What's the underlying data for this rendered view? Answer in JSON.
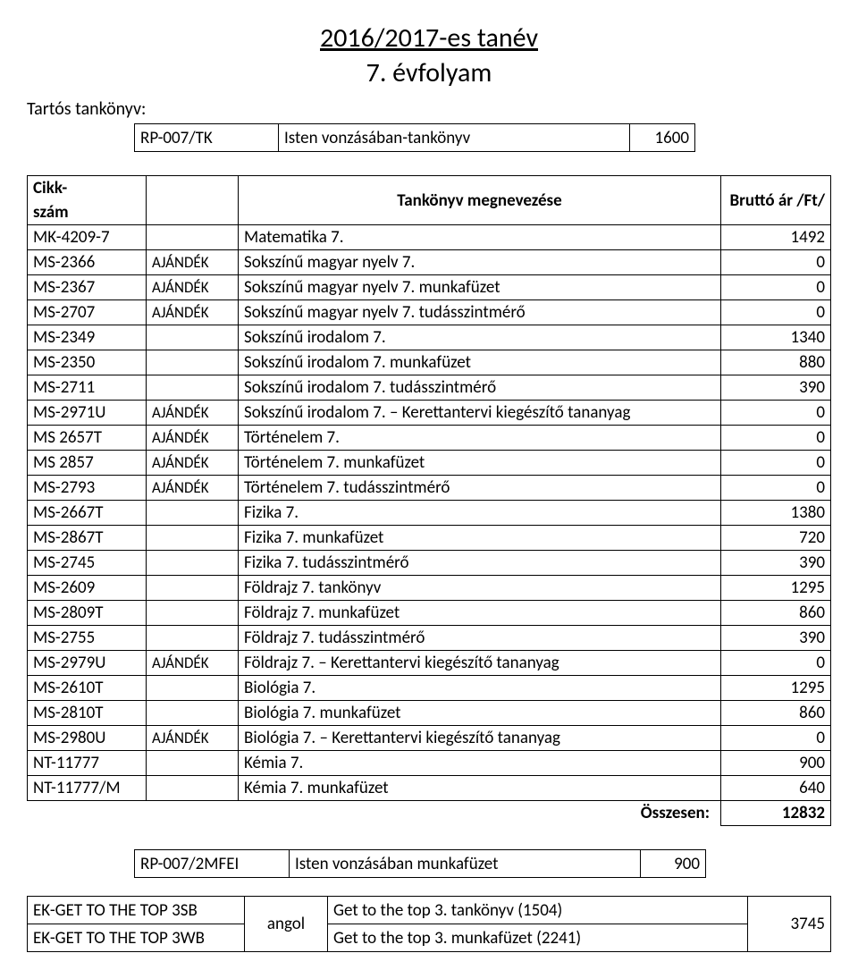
{
  "header": {
    "title": "2016/2017-es tanév",
    "subtitle": "7. évfolyam",
    "subhead": "Tartós tankönyv:"
  },
  "topbox": {
    "code": "RP-007/TK",
    "name": "Isten vonzásában-tankönyv",
    "price": "1600"
  },
  "maintable": {
    "h1a": "Cikk-",
    "h1b": "szám",
    "h2": "Tankönyv megnevezése",
    "h3": "Bruttó ár /Ft/",
    "rows": [
      {
        "c": "MK-4209-7",
        "g": "",
        "n": "Matematika 7.",
        "p": "1492"
      },
      {
        "c": "MS-2366",
        "g": "AJÁNDÉK",
        "n": "Sokszínű magyar nyelv 7.",
        "p": "0"
      },
      {
        "c": "MS-2367",
        "g": "AJÁNDÉK",
        "n": "Sokszínű magyar nyelv 7. munkafüzet",
        "p": "0"
      },
      {
        "c": "MS-2707",
        "g": "AJÁNDÉK",
        "n": "Sokszínű magyar nyelv 7. tudásszintmérő",
        "p": "0"
      },
      {
        "c": "MS-2349",
        "g": "",
        "n": "Sokszínű irodalom 7.",
        "p": "1340"
      },
      {
        "c": "MS-2350",
        "g": "",
        "n": "Sokszínű irodalom 7. munkafüzet",
        "p": "880"
      },
      {
        "c": "MS-2711",
        "g": "",
        "n": "Sokszínű irodalom 7. tudásszintmérő",
        "p": "390"
      },
      {
        "c": "MS-2971U",
        "g": "AJÁNDÉK",
        "n": "Sokszínű irodalom 7. – Kerettantervi kiegészítő tananyag",
        "p": "0"
      },
      {
        "c": "MS 2657T",
        "g": "AJÁNDÉK",
        "n": "Történelem 7.",
        "p": "0"
      },
      {
        "c": "MS 2857",
        "g": "AJÁNDÉK",
        "n": "Történelem 7. munkafüzet",
        "p": "0"
      },
      {
        "c": "MS-2793",
        "g": "AJÁNDÉK",
        "n": "Történelem 7. tudásszintmérő",
        "p": "0"
      },
      {
        "c": "MS-2667T",
        "g": "",
        "n": "Fizika 7.",
        "p": "1380"
      },
      {
        "c": "MS-2867T",
        "g": "",
        "n": "Fizika 7. munkafüzet",
        "p": "720"
      },
      {
        "c": "MS-2745",
        "g": "",
        "n": "Fizika 7. tudásszintmérő",
        "p": "390"
      },
      {
        "c": "MS-2609",
        "g": "",
        "n": "Földrajz 7. tankönyv",
        "p": "1295"
      },
      {
        "c": "MS-2809T",
        "g": "",
        "n": "Földrajz 7. munkafüzet",
        "p": "860"
      },
      {
        "c": "MS-2755",
        "g": "",
        "n": "Földrajz 7. tudásszintmérő",
        "p": "390"
      },
      {
        "c": "MS-2979U",
        "g": "AJÁNDÉK",
        "n": "Földrajz 7. – Kerettantervi kiegészítő tananyag",
        "p": "0"
      },
      {
        "c": "MS-2610T",
        "g": "",
        "n": "Biológia 7.",
        "p": "1295"
      },
      {
        "c": "MS-2810T",
        "g": "",
        "n": "Biológia 7. munkafüzet",
        "p": "860"
      },
      {
        "c": "MS-2980U",
        "g": "AJÁNDÉK",
        "n": "Biológia 7. – Kerettantervi kiegészítő tananyag",
        "p": "0"
      },
      {
        "c": "NT-11777",
        "g": "",
        "n": "Kémia 7.",
        "p": "900"
      },
      {
        "c": "NT-11777/M",
        "g": "",
        "n": "Kémia 7. munkafüzet",
        "p": "640"
      }
    ],
    "sumlabel": "Összesen:",
    "sumval": "12832"
  },
  "wf": {
    "code": "RP-007/2MFEI",
    "name": "Isten vonzásában munkafüzet",
    "price": "900"
  },
  "lang": {
    "r1c": "EK-GET TO THE TOP 3SB",
    "r1n": "Get to the top 3. tankönyv (1504)",
    "r2c": "EK-GET TO THE TOP 3WB",
    "r2n": "Get to the top 3. munkafüzet (2241)",
    "mid": "angol",
    "price": "3745"
  }
}
